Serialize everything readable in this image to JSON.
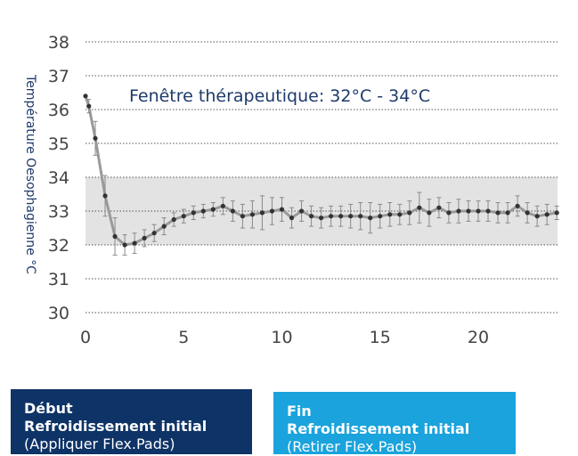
{
  "chart_data": {
    "type": "line",
    "ylabel": "Température Oesophagienne °C",
    "xlabel": "",
    "xlim": [
      0,
      24
    ],
    "ylim": [
      30,
      38
    ],
    "xticks": [
      0,
      5,
      10,
      15,
      20
    ],
    "yticks": [
      30,
      31,
      32,
      33,
      34,
      35,
      36,
      37,
      38
    ],
    "grid": "horizontal-dotted",
    "band": {
      "y0": 32,
      "y1": 34,
      "label": "Fenêtre thérapeutique: 32°C - 34°C"
    },
    "series": [
      {
        "x": [
          0,
          0.17,
          0.5,
          1,
          1.5,
          2,
          2.5,
          3,
          3.5,
          4,
          4.5,
          5,
          5.5,
          6,
          6.5,
          7,
          7.5,
          8,
          8.5,
          9,
          9.5,
          10,
          10.5,
          11,
          11.5,
          12,
          12.5,
          13,
          13.5,
          14,
          14.5,
          15,
          15.5,
          16,
          16.5,
          17,
          17.5,
          18,
          18.5,
          19,
          19.5,
          20,
          20.5,
          21,
          21.5,
          22,
          22.5,
          23,
          23.5,
          24
        ],
        "y": [
          36.4,
          36.1,
          35.15,
          33.45,
          32.25,
          32.0,
          32.05,
          32.2,
          32.35,
          32.55,
          32.75,
          32.85,
          32.95,
          33.0,
          33.05,
          33.15,
          33.0,
          32.85,
          32.9,
          32.95,
          33.0,
          33.05,
          32.8,
          33.0,
          32.85,
          32.8,
          32.85,
          32.85,
          32.85,
          32.85,
          32.8,
          32.85,
          32.9,
          32.9,
          32.95,
          33.1,
          32.95,
          33.1,
          32.95,
          33.0,
          33.0,
          33.0,
          33.0,
          32.95,
          32.95,
          33.15,
          32.95,
          32.85,
          32.9,
          32.95
        ],
        "error": [
          0,
          0.2,
          0.5,
          0.6,
          0.55,
          0.3,
          0.3,
          0.25,
          0.25,
          0.25,
          0.2,
          0.2,
          0.2,
          0.2,
          0.2,
          0.25,
          0.3,
          0.35,
          0.4,
          0.5,
          0.4,
          0.35,
          0.3,
          0.3,
          0.3,
          0.3,
          0.3,
          0.3,
          0.35,
          0.4,
          0.45,
          0.35,
          0.35,
          0.3,
          0.35,
          0.45,
          0.4,
          0.3,
          0.3,
          0.35,
          0.3,
          0.3,
          0.3,
          0.3,
          0.3,
          0.3,
          0.3,
          0.3,
          0.3,
          0.2
        ]
      }
    ]
  },
  "boxes": {
    "start": {
      "line1": "Début",
      "line2": "Refroidissement initial",
      "line3": "(Appliquer Flex.Pads)"
    },
    "end": {
      "line1": "Fin",
      "line2": "Refroidissement initial",
      "line3": "(Retirer Flex.Pads)"
    }
  }
}
